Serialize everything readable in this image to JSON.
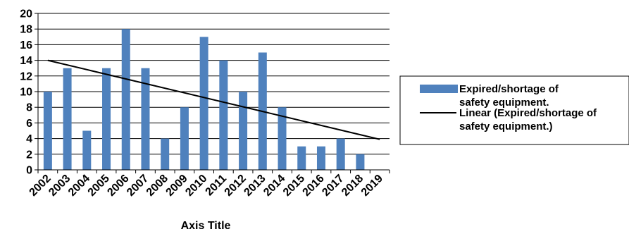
{
  "chart_data": {
    "type": "bar",
    "categories": [
      "2002",
      "2003",
      "2004",
      "2005",
      "2006",
      "2007",
      "2008",
      "2009",
      "2010",
      "2011",
      "2012",
      "2013",
      "2014",
      "2015",
      "2016",
      "2017",
      "2018",
      "2019"
    ],
    "series": [
      {
        "name": "Expired/shortage of safety equipment.",
        "values": [
          10,
          13,
          5,
          13,
          18,
          13,
          4,
          8,
          17,
          14,
          10,
          15,
          8,
          3,
          3,
          4,
          2,
          null
        ],
        "color": "#4f81bd"
      }
    ],
    "trendline": {
      "name": "Linear (Expired/shortage of safety equipment.)",
      "type": "linear",
      "start": {
        "x": "2002",
        "y": 14
      },
      "end": {
        "x": "2019",
        "y": 3.9
      },
      "color": "#000000"
    },
    "title": "",
    "xlabel": "Axis Title",
    "ylabel": "",
    "ylim": [
      0,
      20
    ],
    "yticks": [
      0,
      2,
      4,
      6,
      8,
      10,
      12,
      14,
      16,
      18,
      20
    ],
    "grid": true,
    "legend": "right"
  }
}
